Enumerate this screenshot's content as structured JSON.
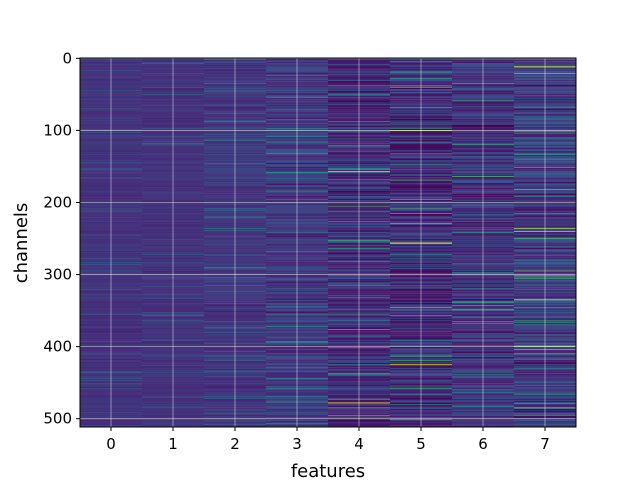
{
  "chart_data": {
    "type": "heatmap",
    "xlabel": "features",
    "ylabel": "channels",
    "x_categories": [
      "0",
      "1",
      "2",
      "3",
      "4",
      "5",
      "6",
      "7"
    ],
    "y_ticks": [
      "0",
      "100",
      "200",
      "300",
      "400",
      "500"
    ],
    "y_range": [
      0,
      512
    ],
    "rows": 512,
    "colormap": "viridis",
    "grid": true,
    "column_value_spread": [
      0.06,
      0.07,
      0.11,
      0.17,
      0.28,
      0.32,
      0.25,
      0.3
    ],
    "column_base_value": [
      0.17,
      0.17,
      0.18,
      0.19,
      0.16,
      0.15,
      0.18,
      0.2
    ],
    "notable_bright_rows": [
      {
        "feature": 4,
        "channel": 157
      },
      {
        "feature": 5,
        "channel": 100
      },
      {
        "feature": 4,
        "channel": 478
      },
      {
        "feature": 7,
        "channel": 240
      },
      {
        "feature": 7,
        "channel": 335
      },
      {
        "feature": 5,
        "channel": 425
      }
    ],
    "colors": {
      "low": "#440154",
      "mid_low": "#3b528b",
      "mid": "#21918c",
      "mid_high": "#5ec962",
      "high": "#fde725",
      "grid": "#ffffff",
      "frame": "#000000"
    }
  }
}
